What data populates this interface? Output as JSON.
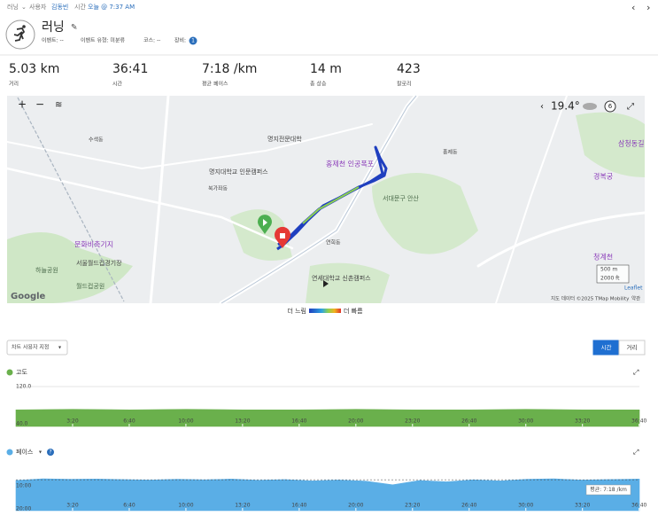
{
  "top_bar": {
    "activity": "러닝",
    "user_label": "사용자",
    "user": "김동빈",
    "time_label": "시간",
    "time": "오늘 @ 7:37 AM"
  },
  "header": {
    "title": "러닝",
    "event": "이벤트: --",
    "event_type": "이벤트 유형: 미분류",
    "course": "코스: --",
    "gear_label": "장비:",
    "gear_count": 1
  },
  "stats": [
    {
      "value": "5.03 km",
      "label": "거리"
    },
    {
      "value": "36:41",
      "label": "시간"
    },
    {
      "value": "7:18 /km",
      "label": "평균 페이스"
    },
    {
      "value": "14 m",
      "label": "총 상승"
    },
    {
      "value": "423",
      "label": "칼로리"
    }
  ],
  "map": {
    "weather": "19.4°",
    "wind": "6",
    "scale": [
      "500 m",
      "2000 ft"
    ],
    "attribution": "지도 데이터 ©2025 TMap Mobility",
    "terms": "약관",
    "leaflet": "Leaflet",
    "google": "Google",
    "places": [
      "명지전문대학",
      "명지대학교 인문캠퍼스",
      "홍제천 인공폭포",
      "서대문구 안산",
      "문화비축기지",
      "서울월드컵경기장",
      "월드컵공원",
      "하늘공원",
      "경복궁",
      "삼청동길",
      "청계천",
      "연세대학교 신촌캠퍼스",
      "북가좌동",
      "연희동",
      "홍제동",
      "수색동"
    ]
  },
  "map_legend": {
    "slower": "더 느림",
    "faster": "더 빠름"
  },
  "chart_controls": {
    "customize": "차트 사용자 지정",
    "toggle": [
      "시간",
      "거리"
    ],
    "selected": "시간"
  },
  "elevation_chart": {
    "type": "area",
    "title": "고도",
    "color": "#6ab04c",
    "x": [
      0,
      200,
      400,
      600,
      800,
      1000,
      1200,
      1400,
      1600,
      1800,
      2000,
      2201
    ],
    "values": [
      70,
      71,
      70,
      71,
      70,
      70,
      71,
      70,
      70,
      71,
      70,
      70
    ],
    "xlim": [
      0,
      2201
    ],
    "ylim": [
      40,
      120
    ],
    "yticks": [
      {
        "value": 120,
        "label": "120.0"
      },
      {
        "value": 40,
        "label": "40.0"
      }
    ],
    "xticks": [
      {
        "value": 200,
        "label": "3:20"
      },
      {
        "value": 400,
        "label": "6:40"
      },
      {
        "value": 600,
        "label": "10:00"
      },
      {
        "value": 800,
        "label": "13:20"
      },
      {
        "value": 1000,
        "label": "16:40"
      },
      {
        "value": 1200,
        "label": "20:00"
      },
      {
        "value": 1400,
        "label": "23:20"
      },
      {
        "value": 1600,
        "label": "26:40"
      },
      {
        "value": 1800,
        "label": "30:00"
      },
      {
        "value": 2000,
        "label": "33:20"
      },
      {
        "value": 2200,
        "label": "36:40"
      }
    ]
  },
  "pace_chart": {
    "type": "area",
    "title": "페이스",
    "color": "#5aaee6",
    "x": [
      0,
      95,
      190,
      285,
      380,
      475,
      570,
      665,
      760,
      855,
      950,
      1045,
      1140,
      1235,
      1330,
      1425,
      1520,
      1615,
      1710,
      1805,
      1900,
      1995,
      2090,
      2201
    ],
    "values": [
      7.6,
      6.9,
      7.1,
      7.0,
      7.2,
      7.4,
      7.1,
      7.3,
      7.0,
      7.5,
      7.2,
      7.8,
      7.4,
      7.9,
      9.5,
      7.6,
      8.2,
      7.3,
      7.8,
      7.1,
      6.9,
      7.4,
      7.2,
      7.0
    ],
    "xlim": [
      0,
      2201
    ],
    "ylim": [
      20,
      3
    ],
    "yticks": [
      {
        "value": 10,
        "label": "10:00"
      },
      {
        "value": 20,
        "label": "20:00"
      }
    ],
    "average": 7.3,
    "average_label": "평균: 7:18 /km",
    "xticks": [
      {
        "value": 200,
        "label": "3:20"
      },
      {
        "value": 400,
        "label": "6:40"
      },
      {
        "value": 600,
        "label": "10:00"
      },
      {
        "value": 800,
        "label": "13:20"
      },
      {
        "value": 1000,
        "label": "16:40"
      },
      {
        "value": 1200,
        "label": "20:00"
      },
      {
        "value": 1400,
        "label": "23:20"
      },
      {
        "value": 1600,
        "label": "26:40"
      },
      {
        "value": 1800,
        "label": "30:00"
      },
      {
        "value": 2000,
        "label": "33:20"
      },
      {
        "value": 2200,
        "label": "36:40"
      }
    ]
  }
}
